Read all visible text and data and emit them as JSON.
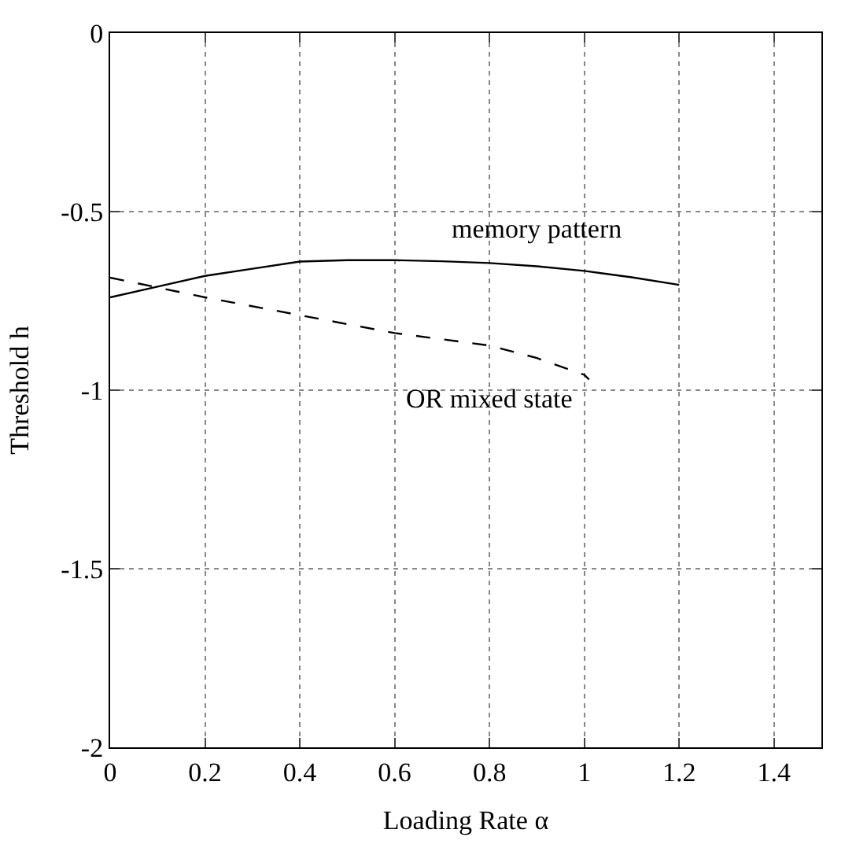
{
  "chart_data": {
    "type": "line",
    "xlabel": "Loading Rate α",
    "ylabel": "Threshold h",
    "xlim": [
      0,
      1.5
    ],
    "ylim": [
      -2,
      0
    ],
    "xticks": [
      0,
      0.2,
      0.4,
      0.6,
      0.8,
      1,
      1.2,
      1.4
    ],
    "yticks": [
      -2,
      -1.5,
      -1,
      -0.5,
      0
    ],
    "grid": true,
    "legend": false,
    "series": [
      {
        "name": "memory pattern",
        "color": "#000000",
        "line_style": "solid",
        "x": [
          0,
          0.1,
          0.2,
          0.3,
          0.4,
          0.5,
          0.6,
          0.7,
          0.8,
          0.9,
          1.0,
          1.1,
          1.2
        ],
        "values": [
          -0.74,
          -0.71,
          -0.68,
          -0.66,
          -0.64,
          -0.636,
          -0.636,
          -0.639,
          -0.644,
          -0.653,
          -0.666,
          -0.684,
          -0.705
        ]
      },
      {
        "name": "OR mixed state",
        "color": "#000000",
        "line_style": "dashed",
        "x": [
          0,
          0.2,
          0.4,
          0.6,
          0.8,
          0.9,
          1.0,
          1.01
        ],
        "values": [
          -0.685,
          -0.74,
          -0.79,
          -0.84,
          -0.875,
          -0.91,
          -0.957,
          -0.97
        ]
      }
    ]
  }
}
